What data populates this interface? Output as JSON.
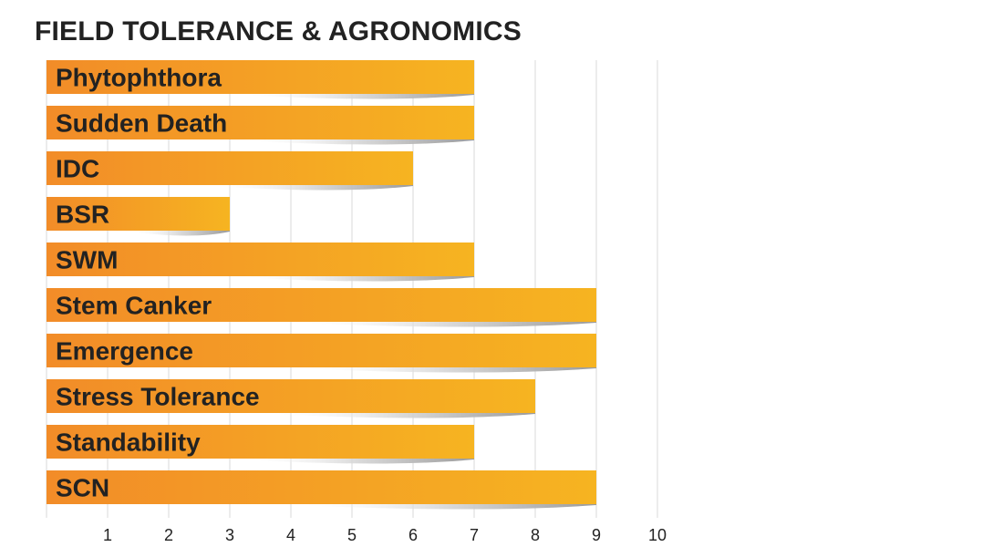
{
  "chart_data": {
    "type": "bar",
    "orientation": "horizontal",
    "title": "FIELD TOLERANCE & AGRONOMICS",
    "categories": [
      "Phytophthora",
      "Sudden Death",
      "IDC",
      "BSR",
      "SWM",
      "Stem Canker",
      "Emergence",
      "Stress Tolerance",
      "Standability",
      "SCN"
    ],
    "values": [
      7,
      7,
      6,
      3,
      7,
      9,
      9,
      8,
      7,
      9
    ],
    "xlim": [
      0,
      10
    ],
    "x_ticks": [
      1,
      2,
      3,
      4,
      5,
      6,
      7,
      8,
      9,
      10
    ],
    "grid": true,
    "colors": {
      "bar_start": "#f28c28",
      "bar_end": "#f6b421",
      "grid": "#d9d9d9",
      "text": "#222222"
    }
  }
}
